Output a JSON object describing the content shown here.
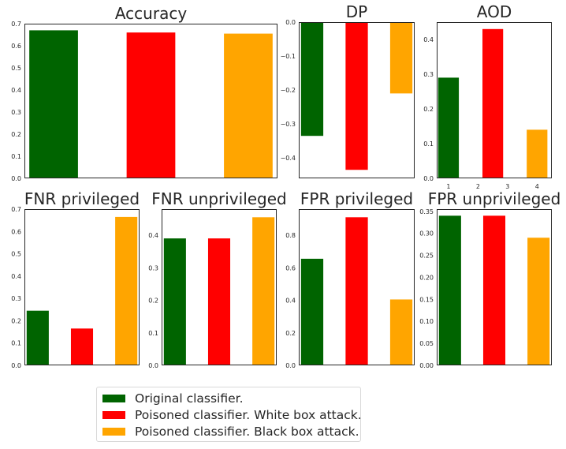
{
  "colors": {
    "original": "#006400",
    "white_box": "#ff0000",
    "black_box": "#ffa500"
  },
  "legend": {
    "items": [
      {
        "label": "Original classifier.",
        "color": "#006400"
      },
      {
        "label": "Poisoned classifier. White box attack.",
        "color": "#ff0000"
      },
      {
        "label": "Poisoned classifier. Black box attack.",
        "color": "#ffa500"
      }
    ]
  },
  "chart_data": [
    {
      "id": "accuracy",
      "type": "bar",
      "title": "Accuracy",
      "values": [
        0.67,
        0.66,
        0.655
      ],
      "ylim": [
        0,
        0.7
      ],
      "yticks": [
        "0.0",
        "0.1",
        "0.2",
        "0.3",
        "0.4",
        "0.5",
        "0.6",
        "0.7"
      ],
      "ytick_values": [
        0,
        0.1,
        0.2,
        0.3,
        0.4,
        0.5,
        0.6,
        0.7
      ],
      "xticks": [],
      "grid": false
    },
    {
      "id": "dp",
      "type": "bar",
      "title": "DP",
      "values": [
        -0.335,
        -0.435,
        -0.21
      ],
      "ylim": [
        -0.46,
        0
      ],
      "yticks": [
        "0.0",
        "−0.1",
        "−0.2",
        "−0.3",
        "−0.4"
      ],
      "ytick_values": [
        0,
        -0.1,
        -0.2,
        -0.3,
        -0.4
      ],
      "xticks": [],
      "grid": false
    },
    {
      "id": "aod",
      "type": "bar",
      "title": "AOD",
      "values": [
        0.29,
        0.43,
        0.14
      ],
      "ylim": [
        0,
        0.45
      ],
      "yticks": [
        "0.0",
        "0.1",
        "0.2",
        "0.3",
        "0.4"
      ],
      "ytick_values": [
        0,
        0.1,
        0.2,
        0.3,
        0.4
      ],
      "xticks": [
        "1",
        "2",
        "3",
        "4"
      ],
      "xtick_values": [
        1,
        2,
        3,
        4
      ],
      "x": [
        1,
        2.5,
        4
      ],
      "xlim": [
        0.6,
        4.5
      ],
      "bar_width": 0.7,
      "grid": false
    },
    {
      "id": "fnr-privileged",
      "type": "bar",
      "title": "FNR privileged",
      "values": [
        0.245,
        0.165,
        0.665
      ],
      "ylim": [
        0,
        0.7
      ],
      "yticks": [
        "0.0",
        "0.1",
        "0.2",
        "0.3",
        "0.4",
        "0.5",
        "0.6",
        "0.7"
      ],
      "ytick_values": [
        0,
        0.1,
        0.2,
        0.3,
        0.4,
        0.5,
        0.6,
        0.7
      ],
      "xticks": [],
      "grid": false
    },
    {
      "id": "fnr-unprivileged",
      "type": "bar",
      "title": "FNR unprivileged",
      "values": [
        0.39,
        0.39,
        0.455
      ],
      "ylim": [
        0,
        0.48
      ],
      "yticks": [
        "0.0",
        "0.1",
        "0.2",
        "0.3",
        "0.4"
      ],
      "ytick_values": [
        0,
        0.1,
        0.2,
        0.3,
        0.4
      ],
      "xticks": [],
      "grid": false
    },
    {
      "id": "fpr-privileged",
      "type": "bar",
      "title": "FPR privileged",
      "values": [
        0.655,
        0.91,
        0.405
      ],
      "ylim": [
        0,
        0.96
      ],
      "yticks": [
        "0.0",
        "0.2",
        "0.4",
        "0.6",
        "0.8"
      ],
      "ytick_values": [
        0,
        0.2,
        0.4,
        0.6,
        0.8
      ],
      "xticks": [],
      "grid": false
    },
    {
      "id": "fpr-unprivileged",
      "type": "bar",
      "title": "FPR unprivileged",
      "values": [
        0.34,
        0.34,
        0.29
      ],
      "ylim": [
        0,
        0.355
      ],
      "yticks": [
        "0.00",
        "0.05",
        "0.10",
        "0.15",
        "0.20",
        "0.25",
        "0.30",
        "0.35"
      ],
      "ytick_values": [
        0,
        0.05,
        0.1,
        0.15,
        0.2,
        0.25,
        0.3,
        0.35
      ],
      "xticks": [],
      "grid": false
    }
  ]
}
